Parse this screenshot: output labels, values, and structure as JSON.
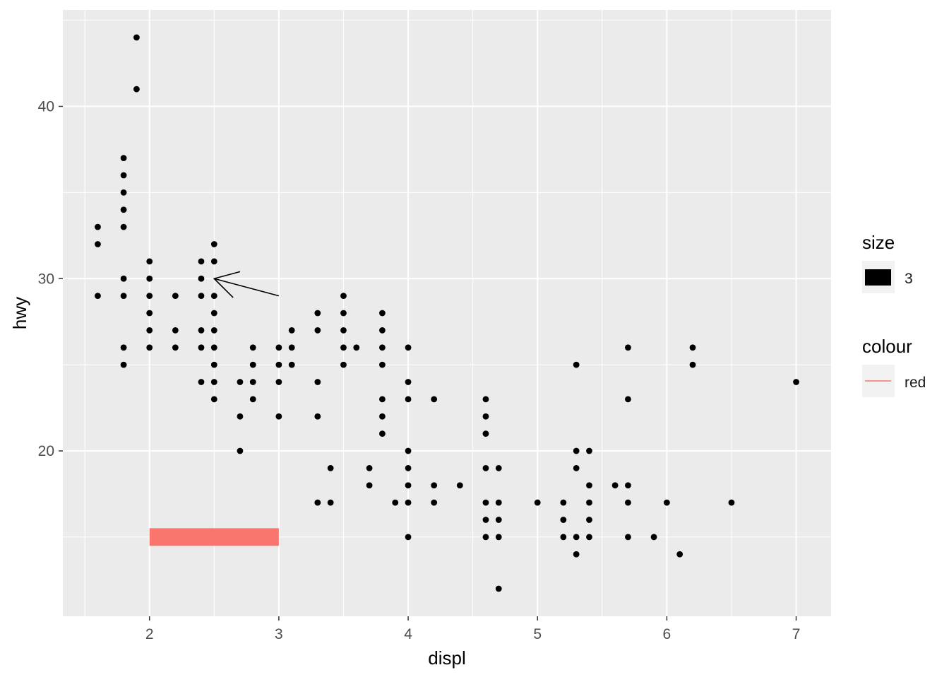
{
  "chart_data": {
    "type": "scatter",
    "title": "",
    "xlabel": "displ",
    "ylabel": "hwy",
    "xlim": [
      1.33,
      7.27
    ],
    "ylim": [
      10.4,
      45.6
    ],
    "x_ticks": [
      2,
      3,
      4,
      5,
      6,
      7
    ],
    "x_tick_labels": [
      "2",
      "3",
      "4",
      "5",
      "6",
      "7"
    ],
    "y_ticks": [
      20,
      30,
      40
    ],
    "y_tick_labels": [
      "20",
      "30",
      "40"
    ],
    "grid": true,
    "panel_background": "#EBEBEB",
    "point_color": "#000000",
    "points": [
      [
        1.6,
        33
      ],
      [
        1.6,
        32
      ],
      [
        1.6,
        29
      ],
      [
        1.8,
        37
      ],
      [
        1.8,
        36
      ],
      [
        1.8,
        35
      ],
      [
        1.8,
        34
      ],
      [
        1.8,
        33
      ],
      [
        1.8,
        30
      ],
      [
        1.8,
        29
      ],
      [
        1.8,
        26
      ],
      [
        1.8,
        25
      ],
      [
        1.9,
        44
      ],
      [
        1.9,
        41
      ],
      [
        2.0,
        31
      ],
      [
        2.0,
        30
      ],
      [
        2.0,
        29
      ],
      [
        2.0,
        28
      ],
      [
        2.0,
        27
      ],
      [
        2.0,
        26
      ],
      [
        2.2,
        29
      ],
      [
        2.2,
        27
      ],
      [
        2.2,
        26
      ],
      [
        2.4,
        31
      ],
      [
        2.4,
        30
      ],
      [
        2.4,
        29
      ],
      [
        2.4,
        27
      ],
      [
        2.4,
        26
      ],
      [
        2.4,
        24
      ],
      [
        2.5,
        32
      ],
      [
        2.5,
        31
      ],
      [
        2.5,
        29
      ],
      [
        2.5,
        28
      ],
      [
        2.5,
        27
      ],
      [
        2.5,
        26
      ],
      [
        2.5,
        25
      ],
      [
        2.5,
        24
      ],
      [
        2.5,
        23
      ],
      [
        2.7,
        24
      ],
      [
        2.7,
        22
      ],
      [
        2.7,
        20
      ],
      [
        2.8,
        26
      ],
      [
        2.8,
        25
      ],
      [
        2.8,
        24
      ],
      [
        2.8,
        23
      ],
      [
        3.0,
        26
      ],
      [
        3.0,
        25
      ],
      [
        3.0,
        24
      ],
      [
        3.0,
        22
      ],
      [
        3.1,
        27
      ],
      [
        3.1,
        26
      ],
      [
        3.1,
        25
      ],
      [
        3.3,
        28
      ],
      [
        3.3,
        27
      ],
      [
        3.3,
        24
      ],
      [
        3.3,
        22
      ],
      [
        3.3,
        17
      ],
      [
        3.4,
        19
      ],
      [
        3.4,
        17
      ],
      [
        3.5,
        29
      ],
      [
        3.5,
        28
      ],
      [
        3.5,
        27
      ],
      [
        3.5,
        26
      ],
      [
        3.5,
        25
      ],
      [
        3.6,
        26
      ],
      [
        3.7,
        19
      ],
      [
        3.7,
        18
      ],
      [
        3.8,
        28
      ],
      [
        3.8,
        27
      ],
      [
        3.8,
        26
      ],
      [
        3.8,
        25
      ],
      [
        3.8,
        23
      ],
      [
        3.8,
        22
      ],
      [
        3.8,
        21
      ],
      [
        3.9,
        17
      ],
      [
        4.0,
        26
      ],
      [
        4.0,
        24
      ],
      [
        4.0,
        23
      ],
      [
        4.0,
        20
      ],
      [
        4.0,
        19
      ],
      [
        4.0,
        18
      ],
      [
        4.0,
        17
      ],
      [
        4.0,
        15
      ],
      [
        4.2,
        23
      ],
      [
        4.2,
        18
      ],
      [
        4.2,
        17
      ],
      [
        4.4,
        18
      ],
      [
        4.6,
        23
      ],
      [
        4.6,
        22
      ],
      [
        4.6,
        21
      ],
      [
        4.6,
        19
      ],
      [
        4.6,
        17
      ],
      [
        4.6,
        16
      ],
      [
        4.6,
        15
      ],
      [
        4.7,
        19
      ],
      [
        4.7,
        17
      ],
      [
        4.7,
        16
      ],
      [
        4.7,
        15
      ],
      [
        4.7,
        12
      ],
      [
        5.0,
        17
      ],
      [
        5.2,
        17
      ],
      [
        5.2,
        16
      ],
      [
        5.2,
        15
      ],
      [
        5.3,
        25
      ],
      [
        5.3,
        20
      ],
      [
        5.3,
        19
      ],
      [
        5.3,
        15
      ],
      [
        5.3,
        14
      ],
      [
        5.4,
        20
      ],
      [
        5.4,
        18
      ],
      [
        5.4,
        17
      ],
      [
        5.4,
        16
      ],
      [
        5.4,
        15
      ],
      [
        5.6,
        18
      ],
      [
        5.7,
        26
      ],
      [
        5.7,
        23
      ],
      [
        5.7,
        18
      ],
      [
        5.7,
        17
      ],
      [
        5.7,
        15
      ],
      [
        5.9,
        15
      ],
      [
        6.0,
        17
      ],
      [
        6.1,
        14
      ],
      [
        6.2,
        26
      ],
      [
        6.2,
        25
      ],
      [
        6.5,
        17
      ],
      [
        7.0,
        24
      ]
    ],
    "annotations": {
      "arrow": {
        "from": [
          3.0,
          29.0
        ],
        "to": [
          2.5,
          30.0
        ],
        "color": "#000000"
      },
      "segment": {
        "x": [
          2.0,
          3.0
        ],
        "y": [
          15.0,
          15.0
        ],
        "color": "#F8766D"
      }
    },
    "legend": {
      "placement": "right",
      "groups": [
        {
          "title": "size",
          "entries": [
            {
              "label": "3",
              "key": "filled-rect",
              "color": "#000000"
            }
          ]
        },
        {
          "title": "colour",
          "entries": [
            {
              "label": "red",
              "key": "line",
              "color": "#F8766D"
            }
          ]
        }
      ]
    }
  }
}
